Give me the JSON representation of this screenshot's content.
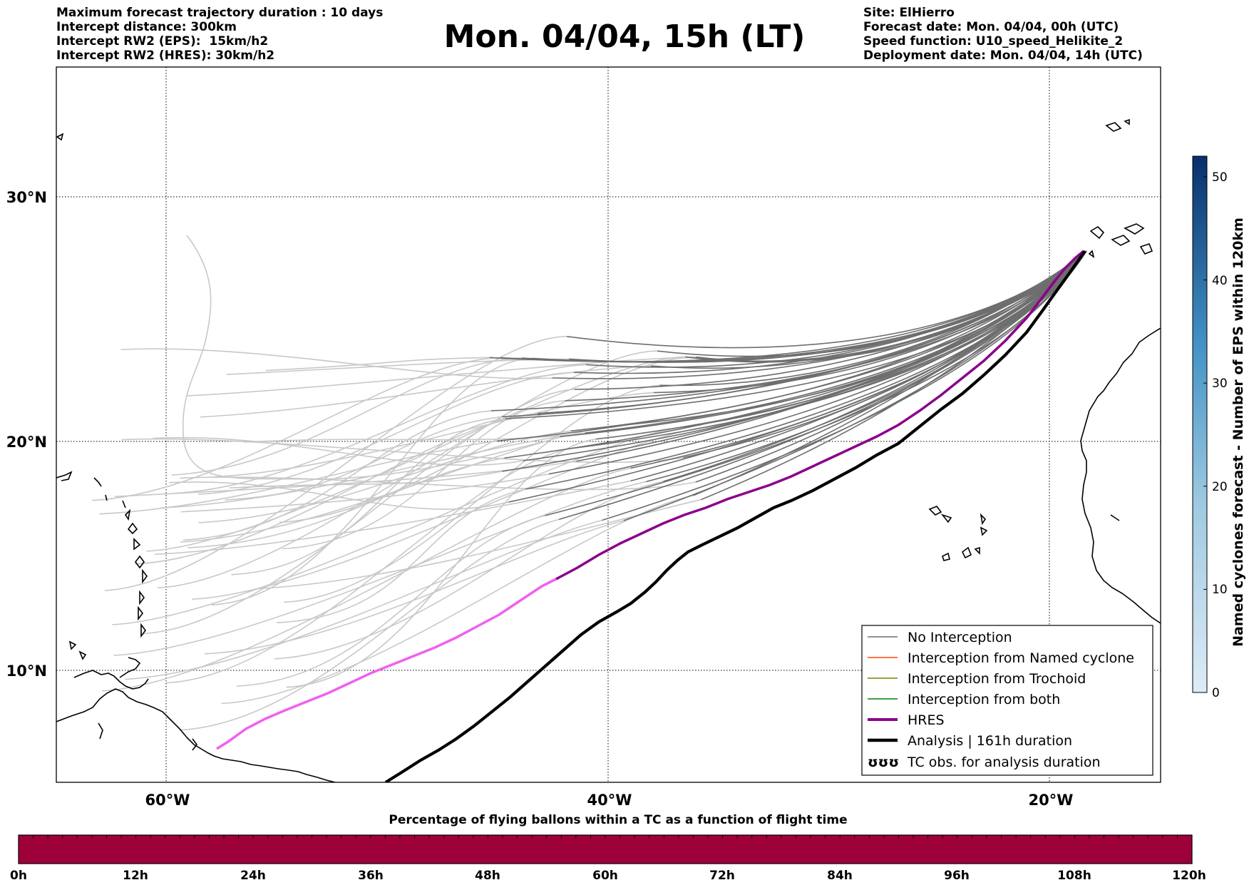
{
  "header": {
    "left_lines": [
      "Maximum forecast trajectory duration : 10 days",
      "Intercept distance: 300km",
      "Intercept RW2 (EPS):  15km/h2",
      "Intercept RW2 (HRES): 30km/h2"
    ],
    "right_lines": [
      "Site: ElHierro",
      "Forecast date: Mon. 04/04, 00h (UTC)",
      "Speed function: U10_speed_Helikite_2",
      "Deployment date: Mon. 04/04, 14h (UTC)"
    ],
    "title": "Mon. 04/04, 15h (LT)"
  },
  "map": {
    "lat_labels": [
      "30°N",
      "20°N",
      "10°N"
    ],
    "lon_labels": [
      "60°W",
      "40°W",
      "20°W"
    ],
    "colors": {
      "eps_no_interception": "#6e6e6e",
      "eps_faded": "#c8c8c8",
      "hres": "#8b008b",
      "hres_faded": "#f060f0",
      "analysis": "#000000",
      "named_cyclone": "#ff4500",
      "trochoid": "#808000",
      "both": "#008000"
    }
  },
  "legend": {
    "items": [
      "No Interception",
      "Interception from Named cyclone",
      "Interception from Trochoid",
      "Interception from both",
      "HRES",
      "Analysis | 161h duration",
      "TC obs. for analysis duration"
    ],
    "tc_symbol": "ʊʊʊ"
  },
  "colorbar_right": {
    "label": "Named cyclones forecast - Number of EPS within 120km",
    "ticks": [
      "0",
      "10",
      "20",
      "30",
      "40",
      "50"
    ],
    "colors": {
      "top": "#08306b",
      "bottom": "#deebf7"
    }
  },
  "colorbar_bottom": {
    "title": "Percentage of flying ballons within a TC as a function of flight time",
    "ticks": [
      "0h",
      "12h",
      "24h",
      "36h",
      "48h",
      "60h",
      "72h",
      "84h",
      "96h",
      "108h",
      "120h"
    ],
    "fill_color": "#9e003a"
  }
}
